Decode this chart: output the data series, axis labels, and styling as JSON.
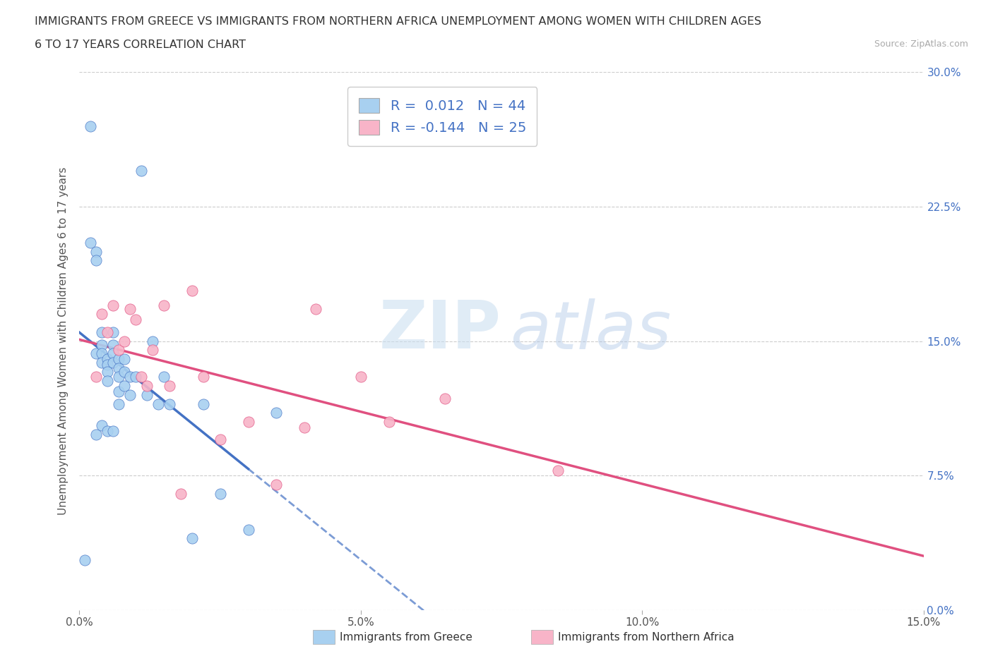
{
  "title_line1": "IMMIGRANTS FROM GREECE VS IMMIGRANTS FROM NORTHERN AFRICA UNEMPLOYMENT AMONG WOMEN WITH CHILDREN AGES",
  "title_line2": "6 TO 17 YEARS CORRELATION CHART",
  "source": "Source: ZipAtlas.com",
  "ylabel": "Unemployment Among Women with Children Ages 6 to 17 years",
  "xlim": [
    0.0,
    0.15
  ],
  "ylim": [
    0.0,
    0.3
  ],
  "xtick_vals": [
    0.0,
    0.05,
    0.1,
    0.15
  ],
  "xtick_labels": [
    "0.0%",
    "5.0%",
    "10.0%",
    "15.0%"
  ],
  "ytick_vals": [
    0.0,
    0.075,
    0.15,
    0.225,
    0.3
  ],
  "ytick_labels_right": [
    "0.0%",
    "7.5%",
    "15.0%",
    "22.5%",
    "30.0%"
  ],
  "greece_R": 0.012,
  "greece_N": 44,
  "nafrica_R": -0.144,
  "nafrica_N": 25,
  "greece_color": "#a8d0f0",
  "nafrica_color": "#f8b4c8",
  "greece_line_color": "#4472c4",
  "nafrica_line_color": "#e05080",
  "legend_text_color": "#4472c4",
  "greece_x": [
    0.001,
    0.002,
    0.002,
    0.003,
    0.003,
    0.003,
    0.003,
    0.004,
    0.004,
    0.004,
    0.004,
    0.004,
    0.005,
    0.005,
    0.005,
    0.005,
    0.005,
    0.006,
    0.006,
    0.006,
    0.006,
    0.006,
    0.007,
    0.007,
    0.007,
    0.007,
    0.007,
    0.008,
    0.008,
    0.008,
    0.009,
    0.009,
    0.01,
    0.011,
    0.012,
    0.013,
    0.014,
    0.015,
    0.016,
    0.02,
    0.022,
    0.025,
    0.03,
    0.035
  ],
  "greece_y": [
    0.028,
    0.27,
    0.205,
    0.2,
    0.195,
    0.143,
    0.098,
    0.155,
    0.148,
    0.143,
    0.138,
    0.103,
    0.14,
    0.137,
    0.133,
    0.128,
    0.1,
    0.155,
    0.148,
    0.143,
    0.138,
    0.1,
    0.14,
    0.135,
    0.13,
    0.122,
    0.115,
    0.14,
    0.133,
    0.125,
    0.13,
    0.12,
    0.13,
    0.245,
    0.12,
    0.15,
    0.115,
    0.13,
    0.115,
    0.04,
    0.115,
    0.065,
    0.045,
    0.11
  ],
  "nafrica_x": [
    0.003,
    0.004,
    0.005,
    0.006,
    0.007,
    0.008,
    0.009,
    0.01,
    0.011,
    0.012,
    0.013,
    0.015,
    0.016,
    0.018,
    0.02,
    0.022,
    0.025,
    0.03,
    0.035,
    0.04,
    0.042,
    0.05,
    0.055,
    0.065,
    0.085
  ],
  "nafrica_y": [
    0.13,
    0.165,
    0.155,
    0.17,
    0.145,
    0.15,
    0.168,
    0.162,
    0.13,
    0.125,
    0.145,
    0.17,
    0.125,
    0.065,
    0.178,
    0.13,
    0.095,
    0.105,
    0.07,
    0.102,
    0.168,
    0.13,
    0.105,
    0.118,
    0.078
  ]
}
